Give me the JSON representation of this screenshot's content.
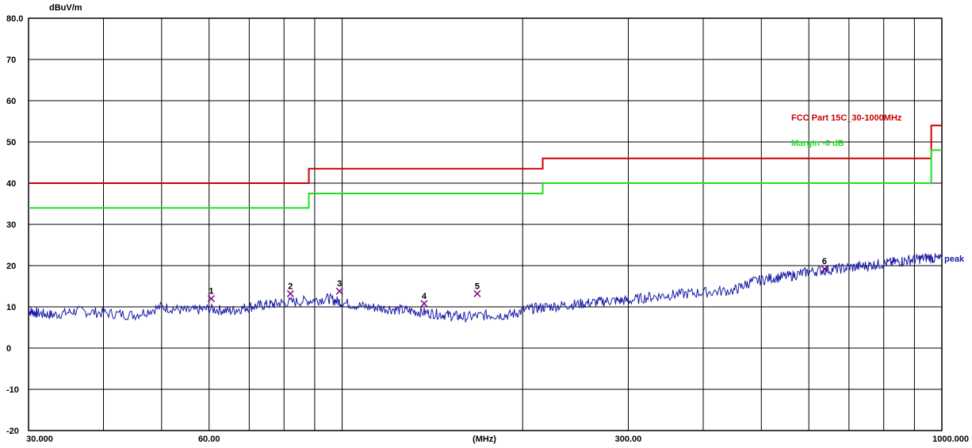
{
  "chart_data": {
    "type": "line",
    "ylabel": "dBuV/m",
    "xlabel": "(MHz)",
    "x_scale": "log",
    "xlim": [
      30,
      1000
    ],
    "ylim": [
      -20,
      80
    ],
    "y_ticks": [
      "80.0",
      "70",
      "60",
      "50",
      "40",
      "30",
      "20",
      "10",
      "0",
      "-10",
      "-20"
    ],
    "x_tick_labels": [
      {
        "x": 30,
        "label": "30.000"
      },
      {
        "x": 60,
        "label": "60.00"
      },
      {
        "x": 300,
        "label": "300.00"
      },
      {
        "x": 1000,
        "label": "1000.000"
      }
    ],
    "grid": true,
    "limit_lines": [
      {
        "name": "FCC Part 15C_30-1000MHz",
        "color": "#cc0000",
        "segments": [
          {
            "x": [
              30,
              88
            ],
            "y": 40
          },
          {
            "x": [
              88,
              216
            ],
            "y": 43.5
          },
          {
            "x": [
              216,
              960
            ],
            "y": 46
          },
          {
            "x": [
              960,
              1000
            ],
            "y": 54
          }
        ]
      },
      {
        "name": "Margin -6 dB",
        "color": "#22dd22",
        "segments": [
          {
            "x": [
              30,
              88
            ],
            "y": 34
          },
          {
            "x": [
              88,
              216
            ],
            "y": 37.5
          },
          {
            "x": [
              216,
              960
            ],
            "y": 40
          },
          {
            "x": [
              960,
              1000
            ],
            "y": 48
          }
        ]
      }
    ],
    "series": [
      {
        "name": "peak",
        "color": "#1a1aa6",
        "x": [
          30,
          31,
          33,
          36,
          40,
          45,
          50,
          55,
          60,
          65,
          70,
          75,
          80,
          88,
          95,
          100,
          110,
          120,
          130,
          140,
          150,
          160,
          175,
          190,
          205,
          220,
          240,
          260,
          280,
          300,
          330,
          360,
          400,
          450,
          480,
          520,
          560,
          600,
          650,
          700,
          750,
          800,
          850,
          900,
          950,
          1000
        ],
        "y": [
          9,
          8.5,
          8,
          9,
          8.5,
          8,
          10,
          9,
          9.5,
          9,
          10,
          10.5,
          11,
          11.5,
          12,
          11,
          10,
          9.5,
          9,
          8.5,
          8,
          7.5,
          8,
          8,
          9.5,
          10,
          10.5,
          11,
          11.5,
          11.5,
          12.5,
          13,
          13.5,
          14,
          16,
          17,
          17.5,
          18.5,
          19,
          19.5,
          20,
          20.5,
          21,
          21.5,
          22,
          21.5
        ]
      }
    ],
    "markers": [
      {
        "label": "1",
        "x": 60.5,
        "y": 12
      },
      {
        "label": "2",
        "x": 82,
        "y": 13.2
      },
      {
        "label": "3",
        "x": 99,
        "y": 13.8
      },
      {
        "label": "4",
        "x": 137,
        "y": 10.8
      },
      {
        "label": "5",
        "x": 168,
        "y": 13.2
      },
      {
        "label": "6",
        "x": 637,
        "y": 19.2
      }
    ]
  }
}
